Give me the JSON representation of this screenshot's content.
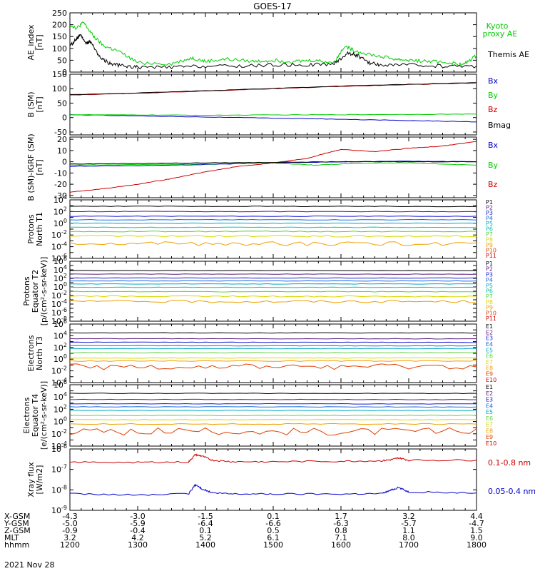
{
  "title": "GOES-17",
  "date_label": "2021 Nov 28",
  "footer": {
    "row_labels": [
      "X-GSM",
      "Y-GSM",
      "Z-GSM",
      "MLT",
      "hhmm"
    ],
    "rows": [
      [
        "-4.3",
        "-3.0",
        "-1.5",
        "0.1",
        "1.7",
        "3.2",
        "4.4"
      ],
      [
        "-5.0",
        "-5.9",
        "-6.4",
        "-6.6",
        "-6.3",
        "-5.7",
        "-4.7"
      ],
      [
        "-0.9",
        "-0.4",
        "0.1",
        "0.5",
        "0.8",
        "1.1",
        "1.5"
      ],
      [
        "3.2",
        "4.2",
        "5.2",
        "6.1",
        "7.1",
        "8.0",
        "9.0"
      ],
      [
        "1200",
        "1300",
        "1400",
        "1500",
        "1600",
        "1700",
        "1800"
      ]
    ]
  },
  "colors": {
    "black": "#000000",
    "red": "#cc0000",
    "green": "#00cc00",
    "blue": "#0000cc",
    "p_palette": [
      "#000000",
      "#5a1f7a",
      "#1a1ad6",
      "#1a6ad6",
      "#00a8c8",
      "#00c8a8",
      "#60d040",
      "#d8d800",
      "#f0a000",
      "#e04000",
      "#cc0000"
    ],
    "e_palette": [
      "#000000",
      "#5a1f7a",
      "#1a1ad6",
      "#1a6ad6",
      "#00a8c8",
      "#60d040",
      "#d8d800",
      "#f0a000",
      "#e04000",
      "#cc0000"
    ]
  },
  "chart_data": [
    {
      "type": "line",
      "ylabel_lines": [
        "AE_index",
        "[nT]"
      ],
      "ylim": [
        0,
        250
      ],
      "yticks": [
        "250",
        "200",
        "150",
        "100",
        "50",
        "0"
      ],
      "x_hours": [
        12,
        18
      ],
      "legend": [
        "Kyoto",
        "proxy AE",
        "Themis AE"
      ],
      "series": [
        {
          "name": "Kyoto proxy AE",
          "color": "green",
          "x": [
            12.0,
            12.1,
            12.2,
            12.35,
            12.5,
            12.7,
            13.0,
            13.5,
            13.8,
            14.0,
            14.3,
            14.7,
            15.0,
            15.3,
            15.6,
            15.9,
            16.05,
            16.2,
            16.5,
            16.8,
            17.0,
            17.3,
            17.6,
            17.8,
            18.0
          ],
          "y": [
            200,
            185,
            210,
            150,
            110,
            90,
            40,
            35,
            60,
            45,
            55,
            45,
            50,
            45,
            50,
            40,
            110,
            90,
            70,
            55,
            50,
            45,
            40,
            30,
            70
          ]
        },
        {
          "name": "Themis AE",
          "color": "black",
          "x": [
            12.0,
            12.1,
            12.15,
            12.25,
            12.3,
            12.45,
            12.6,
            12.8,
            13.0,
            13.5,
            14.0,
            14.5,
            15.0,
            15.5,
            15.9,
            16.1,
            16.25,
            16.4,
            16.6,
            17.0,
            17.5,
            18.0
          ],
          "y": [
            110,
            140,
            155,
            120,
            130,
            60,
            35,
            25,
            20,
            20,
            25,
            25,
            30,
            30,
            35,
            80,
            70,
            40,
            30,
            30,
            25,
            25
          ]
        }
      ]
    },
    {
      "type": "line",
      "ylabel_lines": [
        "B (SM)",
        "[nT]"
      ],
      "ylim": [
        -60,
        150
      ],
      "yticks": [
        "150",
        "100",
        "50",
        "0",
        "-50"
      ],
      "legend": [
        "Bx",
        "By",
        "Bz",
        "Bmag"
      ],
      "series": [
        {
          "name": "Bx",
          "color": "blue",
          "x": [
            12,
            13,
            14,
            15,
            16,
            17,
            18
          ],
          "y": [
            10,
            6,
            2,
            -2,
            -6,
            -10,
            -15
          ]
        },
        {
          "name": "By",
          "color": "green",
          "x": [
            12,
            13,
            14,
            15,
            16,
            17,
            18
          ],
          "y": [
            10,
            9,
            8,
            9,
            10,
            11,
            12
          ]
        },
        {
          "name": "Bz",
          "color": "red",
          "x": [
            12,
            13,
            14,
            15,
            16,
            17,
            18
          ],
          "y": [
            78,
            84,
            92,
            100,
            108,
            114,
            120
          ]
        },
        {
          "name": "Bmag",
          "color": "black",
          "x": [
            12,
            13,
            14,
            15,
            16,
            17,
            18
          ],
          "y": [
            79,
            85,
            93,
            101,
            109,
            115,
            121
          ]
        }
      ]
    },
    {
      "type": "line",
      "ylabel_lines": [
        "B (SM)-IGRF (SM)",
        "[nT]"
      ],
      "ylim": [
        -32,
        22
      ],
      "yticks": [
        "20",
        "10",
        "0",
        "-10",
        "-20",
        "-30"
      ],
      "legend": [
        "Bx",
        "By",
        "Bz"
      ],
      "series": [
        {
          "name": "Bx",
          "color": "blue",
          "x": [
            12,
            13,
            14,
            15,
            16,
            17,
            18
          ],
          "y": [
            -4,
            -3.5,
            -2.5,
            -1,
            0,
            0.5,
            0
          ]
        },
        {
          "name": "By",
          "color": "green",
          "x": [
            12,
            13,
            14,
            15,
            15.6,
            16,
            16.5,
            17,
            18
          ],
          "y": [
            -3,
            -2.5,
            -2,
            -1,
            -3,
            -2,
            -1,
            -1,
            -3
          ]
        },
        {
          "name": "Bz",
          "color": "red",
          "x": [
            12,
            12.5,
            13,
            13.5,
            14,
            14.5,
            15,
            15.5,
            15.8,
            16,
            16.5,
            17,
            17.5,
            18
          ],
          "y": [
            -27,
            -24,
            -20,
            -15,
            -9,
            -4,
            -1,
            3,
            8,
            11,
            9,
            12,
            14,
            18
          ]
        },
        {
          "name": "Bmag",
          "color": "black",
          "x": [
            12,
            13,
            14,
            15,
            16,
            17,
            18
          ],
          "y": [
            -2,
            -1.5,
            -1,
            -0.5,
            0,
            0,
            0
          ]
        }
      ]
    },
    {
      "type": "line",
      "ylabel_lines": [
        "Protons",
        "North T1"
      ],
      "log": true,
      "decades": [
        -6,
        4
      ],
      "yticks_exp": [
        4,
        2,
        0,
        -2,
        -4,
        -6
      ],
      "legend": [
        "P1",
        "P2",
        "P3",
        "P4",
        "P5",
        "P6",
        "P7",
        "P8",
        "P9",
        "P10",
        "P11"
      ],
      "levels": [
        2.9,
        2.0,
        1.2,
        0.6,
        0.0,
        -0.7,
        -1.4,
        -2.2,
        -3.5,
        -8,
        -8
      ],
      "noise": [
        0.05,
        0.05,
        0.05,
        0.05,
        0.05,
        0.05,
        0.08,
        0.15,
        0.35,
        0,
        0
      ]
    },
    {
      "type": "line",
      "ylabel_lines": [
        "Protons",
        "Equator T2",
        "[p/(cm²-s-sr-keV)]"
      ],
      "log": true,
      "decades": [
        -8,
        6
      ],
      "yticks_exp": [
        6,
        4,
        2,
        0,
        -2,
        -4,
        -6,
        -8
      ],
      "legend": [
        "P1",
        "P2",
        "P3",
        "P4",
        "P5",
        "P6",
        "P7",
        "P8",
        "P9",
        "P10",
        "P11"
      ],
      "levels": [
        3.8,
        3.0,
        2.1,
        1.4,
        0.7,
        -0.1,
        -1.1,
        -2.2,
        -3.4,
        -12,
        -12
      ],
      "noise": [
        0.05,
        0.05,
        0.05,
        0.05,
        0.05,
        0.05,
        0.08,
        0.15,
        0.3,
        0,
        0
      ]
    },
    {
      "type": "line",
      "ylabel_lines": [
        "Electrons",
        "North T3"
      ],
      "log": true,
      "decades": [
        -4,
        6
      ],
      "yticks_exp": [
        6,
        4,
        2,
        0,
        -2,
        -4
      ],
      "legend": [
        "E1",
        "E2",
        "E3",
        "E4",
        "E5",
        "E6",
        "E7",
        "E8",
        "E9",
        "E10"
      ],
      "levels": [
        4.5,
        3.5,
        2.9,
        2.3,
        1.8,
        1.1,
        0.2,
        -0.3,
        -1.3,
        -9
      ],
      "noise": [
        0.04,
        0.04,
        0.04,
        0.04,
        0.04,
        0.05,
        0.05,
        0.08,
        0.5,
        0
      ]
    },
    {
      "type": "line",
      "ylabel_lines": [
        "Electrons",
        "Equator T4",
        "[e/(cm²-s-sr-keV)]"
      ],
      "log": true,
      "decades": [
        -4,
        6
      ],
      "yticks_exp": [
        6,
        4,
        2,
        0,
        -2,
        -4
      ],
      "legend": [
        "E1",
        "E2",
        "E3",
        "E4",
        "E5",
        "E6",
        "E7",
        "E8",
        "E9",
        "E10"
      ],
      "levels": [
        4.6,
        3.6,
        2.9,
        2.4,
        1.8,
        1.0,
        0.3,
        -0.4,
        -1.6,
        -9
      ],
      "noise": [
        0.04,
        0.04,
        0.04,
        0.04,
        0.04,
        0.05,
        0.05,
        0.08,
        0.6,
        0
      ]
    },
    {
      "type": "line",
      "ylabel_lines": [
        "Xray flux",
        "[W/m2]"
      ],
      "log": true,
      "decades": [
        -9,
        -6
      ],
      "yticks_exp": [
        -6,
        -7,
        -8,
        -9
      ],
      "legend": [
        "0.1-0.8 nm",
        "0.05-0.4 nm"
      ],
      "series": [
        {
          "name": "0.1-0.8 nm",
          "color": "red",
          "x": [
            12.0,
            13.0,
            13.75,
            13.85,
            13.95,
            14.1,
            14.4,
            15.0,
            16.0,
            16.6,
            16.75,
            16.85,
            17.0,
            18.0
          ],
          "y": [
            -6.65,
            -6.65,
            -6.64,
            -6.28,
            -6.35,
            -6.55,
            -6.62,
            -6.62,
            -6.6,
            -6.58,
            -6.52,
            -6.44,
            -6.55,
            -6.55
          ]
        },
        {
          "name": "0.05-0.4 nm",
          "color": "blue",
          "x": [
            12.0,
            13.0,
            13.75,
            13.85,
            13.95,
            14.1,
            14.4,
            15.0,
            16.0,
            16.6,
            16.75,
            16.85,
            17.0,
            18.0
          ],
          "y": [
            -8.2,
            -8.25,
            -8.2,
            -7.75,
            -7.95,
            -8.15,
            -8.2,
            -8.2,
            -8.2,
            -8.18,
            -8.0,
            -7.88,
            -8.1,
            -8.15
          ]
        }
      ]
    }
  ]
}
